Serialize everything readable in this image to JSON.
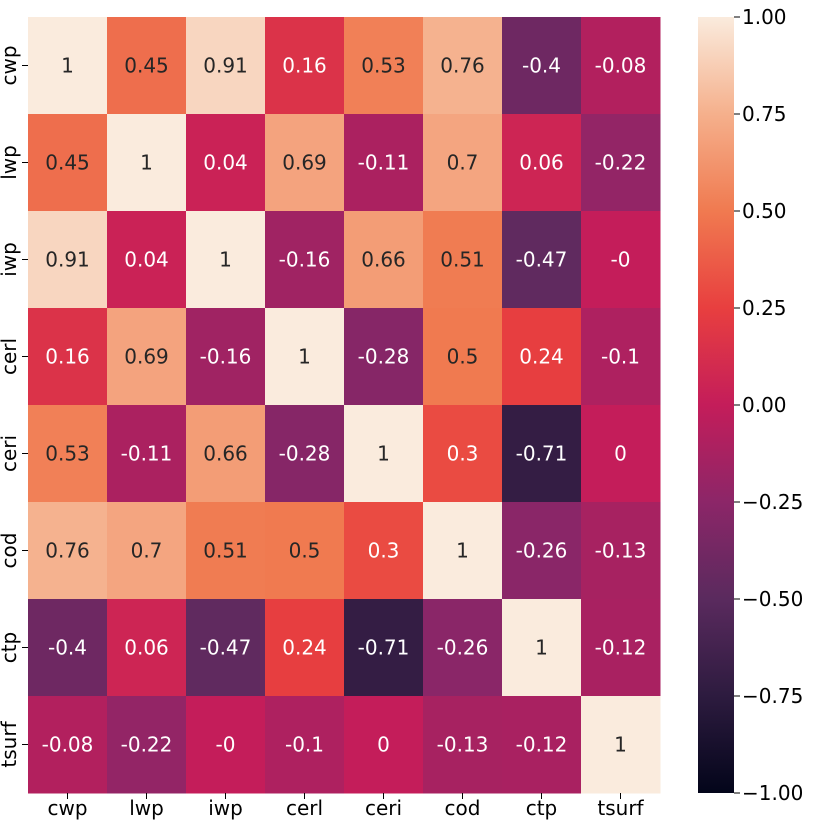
{
  "chart_data": {
    "type": "heatmap",
    "rows": [
      "cwp",
      "lwp",
      "iwp",
      "cerl",
      "ceri",
      "cod",
      "ctp",
      "tsurf"
    ],
    "columns": [
      "cwp",
      "lwp",
      "iwp",
      "cerl",
      "ceri",
      "cod",
      "ctp",
      "tsurf"
    ],
    "values": [
      [
        1,
        0.45,
        0.91,
        0.16,
        0.53,
        0.76,
        -0.4,
        -0.08
      ],
      [
        0.45,
        1,
        0.04,
        0.69,
        -0.11,
        0.7,
        0.06,
        -0.22
      ],
      [
        0.91,
        0.04,
        1,
        -0.16,
        0.66,
        0.51,
        -0.47,
        -0.0
      ],
      [
        0.16,
        0.69,
        -0.16,
        1,
        -0.28,
        0.5,
        0.24,
        -0.1
      ],
      [
        0.53,
        -0.11,
        0.66,
        -0.28,
        1,
        0.3,
        -0.71,
        0
      ],
      [
        0.76,
        0.7,
        0.51,
        0.5,
        0.3,
        1,
        -0.26,
        -0.13
      ],
      [
        -0.4,
        0.06,
        -0.47,
        0.24,
        -0.71,
        -0.26,
        1,
        -0.12
      ],
      [
        -0.08,
        -0.22,
        -0.0,
        -0.1,
        0,
        -0.13,
        -0.12,
        1
      ]
    ],
    "cell_labels": [
      [
        "1",
        "0.45",
        "0.91",
        "0.16",
        "0.53",
        "0.76",
        "-0.4",
        "-0.08"
      ],
      [
        "0.45",
        "1",
        "0.04",
        "0.69",
        "-0.11",
        "0.7",
        "0.06",
        "-0.22"
      ],
      [
        "0.91",
        "0.04",
        "1",
        "-0.16",
        "0.66",
        "0.51",
        "-0.47",
        "-0"
      ],
      [
        "0.16",
        "0.69",
        "-0.16",
        "1",
        "-0.28",
        "0.5",
        "0.24",
        "-0.1"
      ],
      [
        "0.53",
        "-0.11",
        "0.66",
        "-0.28",
        "1",
        "0.3",
        "-0.71",
        "0"
      ],
      [
        "0.76",
        "0.7",
        "0.51",
        "0.5",
        "0.3",
        "1",
        "-0.26",
        "-0.13"
      ],
      [
        "-0.4",
        "0.06",
        "-0.47",
        "0.24",
        "-0.71",
        "-0.26",
        "1",
        "-0.12"
      ],
      [
        "-0.08",
        "-0.22",
        "-0",
        "-0.1",
        "0",
        "-0.13",
        "-0.12",
        "1"
      ]
    ],
    "colorbar": {
      "range": [
        -1.0,
        1.0
      ],
      "ticks": [
        1.0,
        0.75,
        0.5,
        0.25,
        0.0,
        -0.25,
        -0.5,
        -0.75,
        -1.0
      ],
      "tick_labels": [
        "1.00",
        "0.75",
        "0.50",
        "0.25",
        "0.00",
        "−0.25",
        "−0.50",
        "−0.75",
        "−1.00"
      ],
      "colormap": "rocket",
      "colormap_stops": [
        "#03051a",
        "#2d1b3f",
        "#5a2a5e",
        "#8c2668",
        "#c41d5a",
        "#e83f3f",
        "#f07a50",
        "#f5b08c",
        "#faebdd"
      ]
    },
    "title": "",
    "xlabel": "",
    "ylabel": "",
    "text_colors": {
      "on_dark": "#ffffff",
      "on_light": "#262626"
    }
  }
}
